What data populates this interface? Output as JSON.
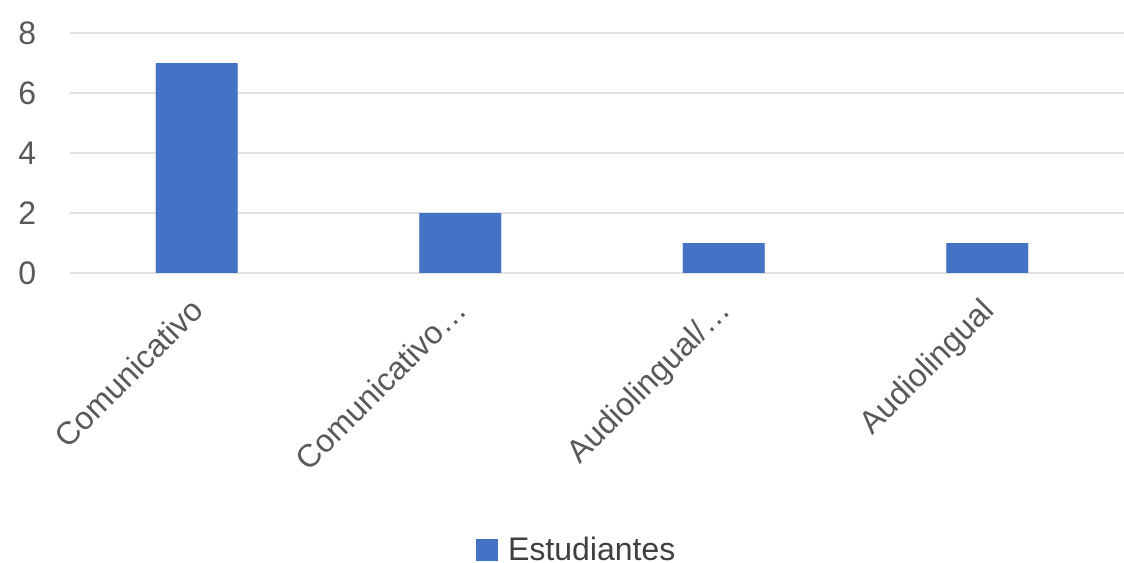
{
  "chart_data": {
    "type": "bar",
    "categories": [
      "Comunicativo",
      "Comunicativo…",
      "Audiolingual/…",
      "Audiolingual"
    ],
    "series": [
      {
        "name": "Estudiantes",
        "values": [
          7,
          2,
          1,
          1
        ]
      }
    ],
    "title": "",
    "xlabel": "",
    "ylabel": "",
    "ylim": [
      0,
      8
    ],
    "yticks": [
      0,
      2,
      4,
      6,
      8
    ],
    "grid": true,
    "legend_position": "bottom",
    "colors": {
      "bar": "#4472C4",
      "grid": "#D9D9D9",
      "text": "#595959"
    }
  }
}
